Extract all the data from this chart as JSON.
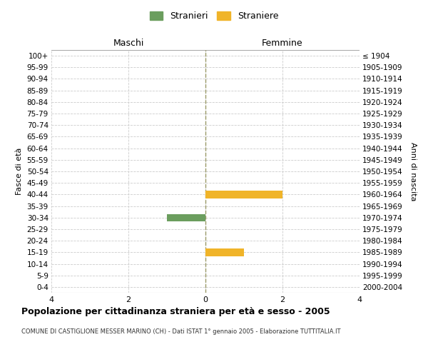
{
  "age_groups": [
    "0-4",
    "5-9",
    "10-14",
    "15-19",
    "20-24",
    "25-29",
    "30-34",
    "35-39",
    "40-44",
    "45-49",
    "50-54",
    "55-59",
    "60-64",
    "65-69",
    "70-74",
    "75-79",
    "80-84",
    "85-89",
    "90-94",
    "95-99",
    "100+"
  ],
  "birth_years": [
    "2000-2004",
    "1995-1999",
    "1990-1994",
    "1985-1989",
    "1980-1984",
    "1975-1979",
    "1970-1974",
    "1965-1969",
    "1960-1964",
    "1955-1959",
    "1950-1954",
    "1945-1949",
    "1940-1944",
    "1935-1939",
    "1930-1934",
    "1925-1929",
    "1920-1924",
    "1915-1919",
    "1910-1914",
    "1905-1909",
    "≤ 1904"
  ],
  "males": [
    0,
    0,
    0,
    0,
    0,
    0,
    1,
    0,
    0,
    0,
    0,
    0,
    0,
    0,
    0,
    0,
    0,
    0,
    0,
    0,
    0
  ],
  "females": [
    0,
    0,
    0,
    1,
    0,
    0,
    0,
    0,
    2,
    0,
    0,
    0,
    0,
    0,
    0,
    0,
    0,
    0,
    0,
    0,
    0
  ],
  "male_color": "#6b9e5e",
  "female_color": "#f0b429",
  "xlim": 4,
  "title": "Popolazione per cittadinanza straniera per età e sesso - 2005",
  "subtitle": "COMUNE DI CASTIGLIONE MESSER MARINO (CH) - Dati ISTAT 1° gennaio 2005 - Elaborazione TUTTITALIA.IT",
  "ylabel_left": "Fasce di età",
  "ylabel_right": "Anni di nascita",
  "header_left": "Maschi",
  "header_right": "Femmine",
  "legend_male": "Stranieri",
  "legend_female": "Straniere",
  "bg_color": "#ffffff",
  "grid_color": "#cccccc",
  "zero_line_color": "#999966",
  "xticks": [
    -4,
    -2,
    0,
    2,
    4
  ],
  "xticklabels": [
    "4",
    "2",
    "0",
    "2",
    "4"
  ]
}
